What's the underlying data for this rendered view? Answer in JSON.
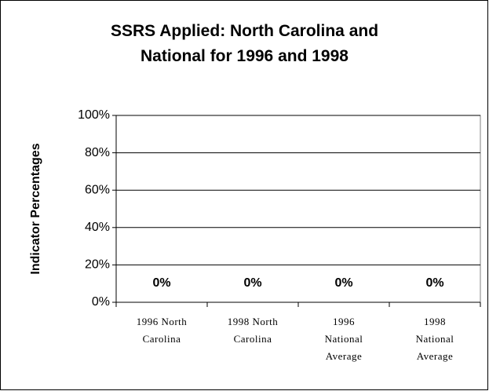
{
  "chart_data": {
    "type": "bar",
    "title": "SSRS Applied: North Carolina and National for 1996 and 1998",
    "y_label": "Indicator Percentages",
    "categories": [
      "1996 North Carolina",
      "1998 North Carolina",
      "1996 National Average",
      "1998 National Average"
    ],
    "values": [
      0,
      0,
      0,
      0
    ],
    "value_labels": [
      "0%",
      "0%",
      "0%",
      "0%"
    ],
    "color": "#9999ff",
    "ylim": [
      0,
      100
    ],
    "yticks": [
      {
        "value": 0,
        "label": "0%"
      },
      {
        "value": 20,
        "label": "20%"
      },
      {
        "value": 40,
        "label": "40%"
      },
      {
        "value": 60,
        "label": "60%"
      },
      {
        "value": 80,
        "label": "80%"
      },
      {
        "value": 100,
        "label": "100%"
      }
    ],
    "grid": true
  }
}
